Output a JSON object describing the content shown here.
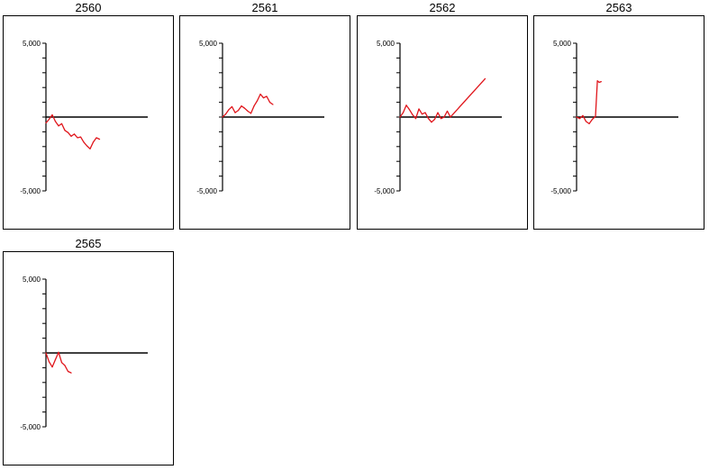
{
  "chart_data": [
    {
      "type": "line",
      "title": "2560",
      "ylim": [
        -5000,
        5000
      ],
      "y_tick_labels": [
        "5,000",
        "-5,000"
      ],
      "xlim": [
        0,
        14
      ],
      "series": [
        {
          "color": "#e0151b",
          "x": [
            0,
            0.5,
            1,
            1.5,
            2,
            2.5,
            3,
            3.5,
            4,
            4.5,
            5,
            5.5,
            6,
            6.5,
            7,
            7.5,
            8,
            8.5
          ],
          "y": [
            -400,
            -150,
            150,
            -300,
            -600,
            -450,
            -900,
            -1050,
            -1300,
            -1150,
            -1400,
            -1350,
            -1700,
            -1950,
            -2150,
            -1700,
            -1400,
            -1500
          ]
        }
      ]
    },
    {
      "type": "line",
      "title": "2561",
      "ylim": [
        -5000,
        5000
      ],
      "y_tick_labels": [
        "5,000",
        "-5,000"
      ],
      "xlim": [
        0,
        14
      ],
      "series": [
        {
          "color": "#e0151b",
          "x": [
            0,
            0.5,
            1,
            1.5,
            2,
            2.5,
            3,
            3.5,
            4,
            4.5,
            5,
            5.5,
            6,
            6.5,
            7,
            7.5,
            8
          ],
          "y": [
            0,
            200,
            500,
            700,
            300,
            450,
            750,
            600,
            400,
            250,
            750,
            1100,
            1550,
            1300,
            1400,
            1000,
            850
          ]
        }
      ]
    },
    {
      "type": "line",
      "title": "2562",
      "ylim": [
        -5000,
        5000
      ],
      "y_tick_labels": [
        "5,000",
        "-5,000"
      ],
      "xlim": [
        0,
        14
      ],
      "series": [
        {
          "color": "#e0151b",
          "x": [
            0,
            0.5,
            1,
            1.5,
            2,
            2.5,
            3,
            3.5,
            4,
            4.5,
            5,
            5.5,
            6,
            6.5,
            7,
            7.5,
            8,
            13.5
          ],
          "y": [
            0,
            300,
            800,
            500,
            150,
            -100,
            550,
            200,
            300,
            -100,
            -350,
            -150,
            300,
            -100,
            0,
            400,
            0,
            2600
          ]
        }
      ]
    },
    {
      "type": "line",
      "title": "2563",
      "ylim": [
        -5000,
        5000
      ],
      "y_tick_labels": [
        "5,000",
        "-5,000"
      ],
      "xlim": [
        0,
        14
      ],
      "series": [
        {
          "color": "#e0151b",
          "x": [
            0,
            0.5,
            1,
            1.5,
            2,
            2.5,
            3,
            3.3,
            3.6,
            3.9
          ],
          "y": [
            0,
            -100,
            100,
            -300,
            -450,
            -150,
            50,
            2450,
            2350,
            2400
          ]
        }
      ]
    },
    {
      "type": "line",
      "title": "2565",
      "ylim": [
        -5000,
        5000
      ],
      "y_tick_labels": [
        "5,000",
        "-5,000"
      ],
      "xlim": [
        0,
        14
      ],
      "series": [
        {
          "color": "#e0151b",
          "x": [
            0,
            0.5,
            1,
            1.5,
            2,
            2.5,
            3,
            3.5,
            4
          ],
          "y": [
            0,
            -600,
            -950,
            -450,
            50,
            -650,
            -850,
            -1250,
            -1350
          ]
        }
      ]
    }
  ]
}
